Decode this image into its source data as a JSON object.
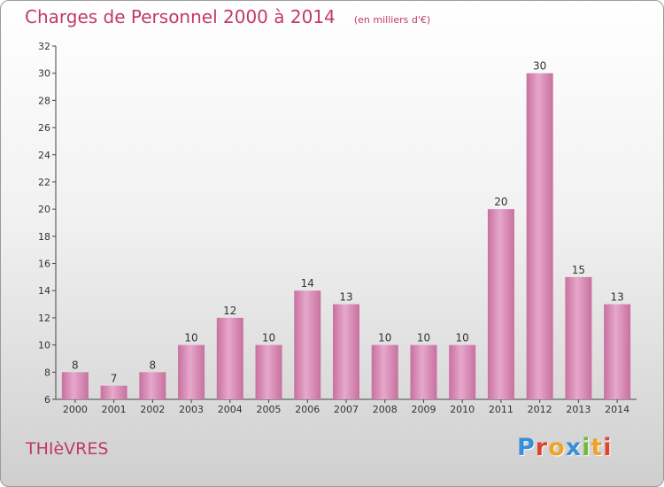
{
  "header": {
    "title": "Charges de Personnel 2000 à 2014",
    "subtitle": "(en milliers d'€)"
  },
  "footer": {
    "commune": "THIèVRES",
    "logo": {
      "text": "Proxiti",
      "letters": [
        {
          "char": "P",
          "color": "#3a8fd6"
        },
        {
          "char": "r",
          "color": "#e0432e"
        },
        {
          "char": "o",
          "color": "#f0a32a"
        },
        {
          "char": "x",
          "color": "#3a8fd6"
        },
        {
          "char": "i",
          "color": "#72b83f"
        },
        {
          "char": "t",
          "color": "#f0a32a"
        },
        {
          "char": "i",
          "color": "#e0432e"
        }
      ]
    }
  },
  "chart_data": {
    "type": "bar",
    "categories": [
      "2000",
      "2001",
      "2002",
      "2003",
      "2004",
      "2005",
      "2006",
      "2007",
      "2008",
      "2009",
      "2010",
      "2011",
      "2012",
      "2013",
      "2014"
    ],
    "values": [
      8,
      7,
      8,
      10,
      12,
      10,
      14,
      13,
      10,
      10,
      10,
      20,
      30,
      15,
      13
    ],
    "ylim": [
      6,
      32
    ],
    "yticks": [
      6,
      8,
      10,
      12,
      14,
      16,
      18,
      20,
      22,
      24,
      26,
      28,
      30,
      32
    ],
    "grid": false,
    "bar_color": "#c8709f",
    "bar_highlight": "#e6a8cb"
  }
}
